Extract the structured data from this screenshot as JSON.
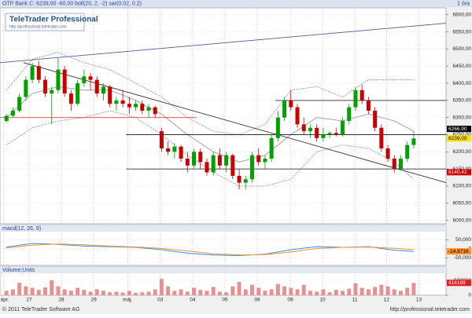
{
  "chart_data": [
    {
      "type": "candlestick",
      "title": "OTP Bank C: 6239,00 -60,00 boll(20, 2, -2) sar(0.02, 0.2)",
      "interval": "1 óra",
      "up_color": "#00a000",
      "down_color": "#c80000",
      "grid": true,
      "xlim": [
        -1,
        68
      ],
      "xticks": [
        {
          "value": -0.4,
          "label": "ápr."
        },
        {
          "value": 3.5,
          "label": "27"
        },
        {
          "value": 8.5,
          "label": "28"
        },
        {
          "value": 13.5,
          "label": "29"
        },
        {
          "value": 18.75,
          "label": "máj."
        },
        {
          "value": 23.8,
          "label": "03"
        },
        {
          "value": 28.8,
          "label": "04"
        },
        {
          "value": 33.8,
          "label": "05"
        },
        {
          "value": 38.8,
          "label": "06"
        },
        {
          "value": 43.9,
          "label": "09"
        },
        {
          "value": 48.9,
          "label": "10"
        },
        {
          "value": 53.9,
          "label": "11"
        },
        {
          "value": 58.8,
          "label": "12"
        },
        {
          "value": 63.8,
          "label": "13"
        }
      ],
      "ylim": [
        5990,
        6620
      ],
      "yticks": [
        {
          "value": 6000,
          "label": "6000,00"
        },
        {
          "value": 6050,
          "label": "6050,00"
        },
        {
          "value": 6100,
          "label": "6100,00"
        },
        {
          "value": 6150,
          "label": "6150,00"
        },
        {
          "value": 6200,
          "label": "6200,00"
        },
        {
          "value": 6250,
          "label": "6250,00"
        },
        {
          "value": 6300,
          "label": "6300,00"
        },
        {
          "value": 6350,
          "label": "6350,00"
        },
        {
          "value": 6400,
          "label": "6400,00"
        },
        {
          "value": 6450,
          "label": "6450,00"
        },
        {
          "value": 6500,
          "label": "6500,00"
        },
        {
          "value": 6550,
          "label": "6550,00"
        },
        {
          "value": 6600,
          "label": "6600,00"
        }
      ],
      "ohlc": [
        [
          6290,
          6310,
          6285,
          6305
        ],
        [
          6305,
          6330,
          6300,
          6320
        ],
        [
          6320,
          6370,
          6315,
          6360
        ],
        [
          6360,
          6420,
          6350,
          6410
        ],
        [
          6410,
          6460,
          6400,
          6450
        ],
        [
          6450,
          6465,
          6400,
          6410
        ],
        [
          6410,
          6420,
          6360,
          6370
        ],
        [
          6370,
          6390,
          6280,
          6380
        ],
        [
          6380,
          6475,
          6370,
          6440
        ],
        [
          6440,
          6450,
          6360,
          6370
        ],
        [
          6370,
          6380,
          6320,
          6340
        ],
        [
          6340,
          6410,
          6335,
          6400
        ],
        [
          6400,
          6440,
          6390,
          6420
        ],
        [
          6420,
          6430,
          6380,
          6410
        ],
        [
          6410,
          6420,
          6360,
          6370
        ],
        [
          6370,
          6400,
          6350,
          6390
        ],
        [
          6390,
          6395,
          6330,
          6340
        ],
        [
          6340,
          6360,
          6320,
          6350
        ],
        [
          6350,
          6380,
          6330,
          6340
        ],
        [
          6340,
          6360,
          6310,
          6330
        ],
        [
          6330,
          6350,
          6320,
          6340
        ],
        [
          6340,
          6350,
          6310,
          6320
        ],
        [
          6320,
          6340,
          6300,
          6330
        ],
        [
          6330,
          6335,
          6300,
          6310
        ],
        [
          6260,
          6270,
          6200,
          6210
        ],
        [
          6210,
          6230,
          6190,
          6200
        ],
        [
          6200,
          6225,
          6180,
          6215
        ],
        [
          6215,
          6220,
          6170,
          6180
        ],
        [
          6180,
          6200,
          6140,
          6160
        ],
        [
          6160,
          6210,
          6150,
          6200
        ],
        [
          6200,
          6210,
          6150,
          6170
        ],
        [
          6170,
          6180,
          6130,
          6140
        ],
        [
          6140,
          6200,
          6130,
          6190
        ],
        [
          6190,
          6210,
          6150,
          6160
        ],
        [
          6160,
          6200,
          6140,
          6190
        ],
        [
          6190,
          6195,
          6120,
          6130
        ],
        [
          6130,
          6150,
          6090,
          6110
        ],
        [
          6110,
          6130,
          6090,
          6120
        ],
        [
          6120,
          6200,
          6110,
          6190
        ],
        [
          6190,
          6210,
          6160,
          6170
        ],
        [
          6170,
          6190,
          6150,
          6180
        ],
        [
          6180,
          6250,
          6170,
          6240
        ],
        [
          6240,
          6320,
          6230,
          6300
        ],
        [
          6300,
          6360,
          6290,
          6350
        ],
        [
          6350,
          6380,
          6320,
          6330
        ],
        [
          6330,
          6340,
          6270,
          6280
        ],
        [
          6280,
          6300,
          6250,
          6260
        ],
        [
          6260,
          6280,
          6240,
          6270
        ],
        [
          6270,
          6280,
          6230,
          6240
        ],
        [
          6240,
          6270,
          6230,
          6250
        ],
        [
          6250,
          6260,
          6240,
          6255
        ],
        [
          6255,
          6270,
          6245,
          6250
        ],
        [
          6250,
          6300,
          6245,
          6290
        ],
        [
          6290,
          6340,
          6280,
          6330
        ],
        [
          6330,
          6390,
          6320,
          6380
        ],
        [
          6380,
          6395,
          6340,
          6350
        ],
        [
          6350,
          6360,
          6310,
          6320
        ],
        [
          6320,
          6330,
          6260,
          6270
        ],
        [
          6270,
          6280,
          6200,
          6210
        ],
        [
          6210,
          6220,
          6170,
          6180
        ],
        [
          6180,
          6190,
          6140,
          6150
        ],
        [
          6150,
          6190,
          6145,
          6180
        ],
        [
          6180,
          6230,
          6170,
          6220
        ],
        [
          6220,
          6260,
          6210,
          6239
        ]
      ],
      "bands": [
        {
          "color": "#6070b0",
          "dash": true,
          "x": [
            0,
            4,
            8,
            12,
            16,
            20,
            24,
            28,
            32,
            36,
            40,
            44,
            48,
            52,
            56,
            60,
            63
          ],
          "values": [
            6380,
            6470,
            6490,
            6460,
            6440,
            6400,
            6360,
            6300,
            6260,
            6250,
            6280,
            6380,
            6390,
            6360,
            6410,
            6410,
            6410
          ]
        },
        {
          "color": "#909090",
          "dash": false,
          "x": [
            0,
            4,
            8,
            12,
            16,
            20,
            24,
            28,
            32,
            36,
            40,
            44,
            48,
            52,
            56,
            60,
            63
          ],
          "values": [
            6300,
            6370,
            6390,
            6380,
            6380,
            6350,
            6310,
            6250,
            6200,
            6170,
            6190,
            6250,
            6300,
            6290,
            6310,
            6290,
            6260
          ]
        },
        {
          "color": "#6070b0",
          "dash": true,
          "x": [
            0,
            4,
            8,
            12,
            16,
            20,
            24,
            28,
            32,
            36,
            40,
            44,
            48,
            52,
            56,
            60,
            63
          ],
          "values": [
            6220,
            6270,
            6290,
            6300,
            6320,
            6300,
            6250,
            6190,
            6140,
            6100,
            6100,
            6120,
            6200,
            6220,
            6210,
            6170,
            6120
          ]
        }
      ],
      "trendlines": [
        {
          "color": "#4a5a9a",
          "x": [
            -1,
            68
          ],
          "values": [
            6460,
            6575
          ]
        },
        {
          "color": "#303030",
          "x": [
            2.65,
            68
          ],
          "values": [
            6460,
            6110
          ]
        },
        {
          "color": "#e04040",
          "x": [
            -1,
            29.4
          ],
          "values": [
            6300,
            6300
          ]
        },
        {
          "color": "#303030",
          "x": [
            41.6,
            68
          ],
          "values": [
            6350,
            6350
          ]
        },
        {
          "color": "#303030",
          "x": [
            18.5,
            68
          ],
          "values": [
            6250,
            6250
          ]
        },
        {
          "color": "#303030",
          "x": [
            18.5,
            68
          ],
          "values": [
            6150,
            6150
          ]
        }
      ],
      "price_labels": [
        {
          "value": 6266.9,
          "label": "6266,90",
          "color": "#000000",
          "text_color": "#ffffff"
        },
        {
          "value": 6239,
          "label": "6239,00",
          "color": "#ffe000",
          "text_color": "#000000"
        },
        {
          "value": 6140.42,
          "label": "6140,42",
          "color": "#d00000",
          "text_color": "#ffffff"
        }
      ]
    },
    {
      "type": "line",
      "title": "macd(12, 26, 9)",
      "grid": true,
      "ylim": [
        -93,
        96
      ],
      "yticks": [
        {
          "value": -50,
          "label": "-50,000"
        },
        0,
        {
          "value": 50,
          "label": "50,000"
        }
      ],
      "series": [
        {
          "color": "#3090ff",
          "x": [
            0,
            4,
            8,
            12,
            16,
            20,
            24,
            28,
            32,
            36,
            40,
            44,
            48,
            52,
            56,
            60,
            63
          ],
          "values": [
            10,
            30,
            25,
            15,
            12,
            8,
            -5,
            -25,
            -35,
            -38,
            -30,
            -5,
            12,
            8,
            12,
            -8,
            -14.6716
          ]
        },
        {
          "color": "#ff9020",
          "x": [
            0,
            4,
            8,
            12,
            16,
            20,
            24,
            28,
            32,
            36,
            40,
            44,
            48,
            52,
            56,
            60,
            63
          ],
          "values": [
            5,
            20,
            27,
            22,
            15,
            10,
            2,
            -12,
            -28,
            -35,
            -33,
            -18,
            2,
            8,
            10,
            3,
            -5
          ]
        }
      ],
      "price_labels": [
        {
          "value": -14.6716,
          "label": "-14,6716",
          "color": "#ff9020",
          "text_color": "#000000"
        }
      ]
    },
    {
      "type": "bar",
      "title": "Volume;Units",
      "color": "#e89090",
      "grid": true,
      "ylim": [
        0,
        740000
      ],
      "yticks": [
        0,
        500000
      ],
      "values": [
        150000,
        200000,
        420000,
        300000,
        250000,
        180000,
        260000,
        500000,
        300000,
        200000,
        150000,
        250000,
        180000,
        120000,
        200000,
        150000,
        100000,
        120000,
        90000,
        150000,
        80000,
        100000,
        120000,
        200000,
        550000,
        300000,
        150000,
        200000,
        120000,
        250000,
        180000,
        150000,
        280000,
        120000,
        100000,
        300000,
        450000,
        200000,
        350000,
        250000,
        150000,
        200000,
        380000,
        300000,
        250000,
        200000,
        350000,
        150000,
        120000,
        200000,
        100000,
        180000,
        150000,
        220000,
        400000,
        250000,
        200000,
        280000,
        350000,
        300000,
        200000,
        150000,
        250000,
        416189
      ]
    }
  ],
  "logo": {
    "name": "TeleTrader Professional",
    "url": "http://professional.teletrader.com"
  },
  "footer": {
    "copyright": "© 2011 TeleTrader Software AG",
    "url": "http://professional.teletrader.com"
  }
}
